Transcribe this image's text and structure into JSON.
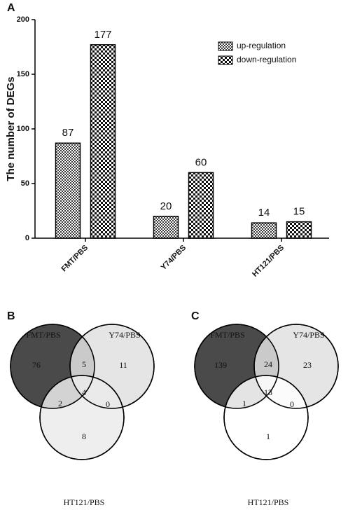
{
  "chart_data": [
    {
      "type": "bar",
      "panel_label": "A",
      "y_label": "The number of DEGs",
      "categories": [
        "FMT/PBS",
        "Y74/PBS",
        "HT121/PBS"
      ],
      "series": [
        {
          "name": "up-regulation",
          "color": "#3a3a3a",
          "values": [
            87,
            20,
            14
          ]
        },
        {
          "name": "down-regulation",
          "color": "#111111",
          "values": [
            177,
            60,
            15
          ]
        }
      ],
      "ylim": [
        0,
        200
      ],
      "yticks": [
        0,
        50,
        100,
        150,
        200
      ],
      "legend": "upper right"
    },
    {
      "type": "venn",
      "panel_label": "B",
      "sets": [
        "FMT/PBS",
        "Y74/PBS",
        "HT121/PBS"
      ],
      "colors": [
        "#4a4a4a",
        "#e0e0e0",
        "#ebebeb"
      ],
      "values": [
        76,
        5,
        11,
        2,
        4,
        0,
        8
      ]
    },
    {
      "type": "venn",
      "panel_label": "C",
      "sets": [
        "FMT/PBS",
        "Y74/PBS",
        "HT121/PBS"
      ],
      "colors": [
        "#4a4a4a",
        "#e0e0e0",
        "#ffffff"
      ],
      "values": [
        139,
        24,
        23,
        1,
        13,
        0,
        1
      ]
    }
  ]
}
